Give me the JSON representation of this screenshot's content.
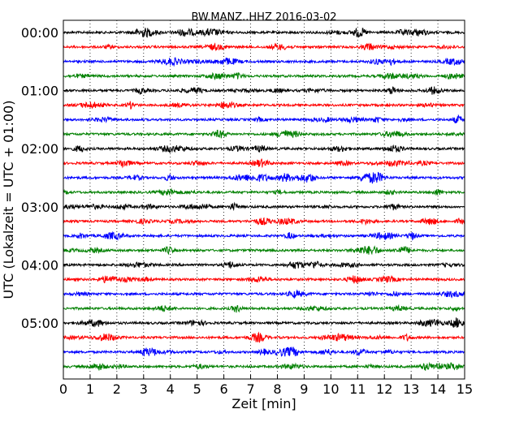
{
  "chart_data": {
    "type": "line",
    "title": "BW.MANZ..HHZ 2016-03-02",
    "xlabel": "Zeit  [min]",
    "ylabel": "UTC (Lokalzeit = UTC + 01:00)",
    "xlim": [
      0,
      15
    ],
    "x_ticks": [
      "0",
      "1",
      "2",
      "3",
      "4",
      "5",
      "6",
      "7",
      "8",
      "9",
      "10",
      "11",
      "12",
      "13",
      "14",
      "15"
    ],
    "y_tick_labels": [
      "00:00",
      "01:00",
      "02:00",
      "03:00",
      "04:00",
      "05:00"
    ],
    "y_tick_trace_index": [
      0,
      4,
      8,
      12,
      16,
      20
    ],
    "traces_count": 24,
    "trace_minutes": 15,
    "color_cycle": [
      "#000000",
      "#ff0000",
      "#0000ff",
      "#008000"
    ],
    "vertical_grid": "dotted",
    "trace_start_times": [
      "00:00",
      "00:15",
      "00:30",
      "00:45",
      "01:00",
      "01:15",
      "01:30",
      "01:45",
      "02:00",
      "02:15",
      "02:30",
      "02:45",
      "03:00",
      "03:15",
      "03:30",
      "03:45",
      "04:00",
      "04:15",
      "04:30",
      "04:45",
      "05:00",
      "05:15",
      "05:30",
      "05:45"
    ]
  }
}
